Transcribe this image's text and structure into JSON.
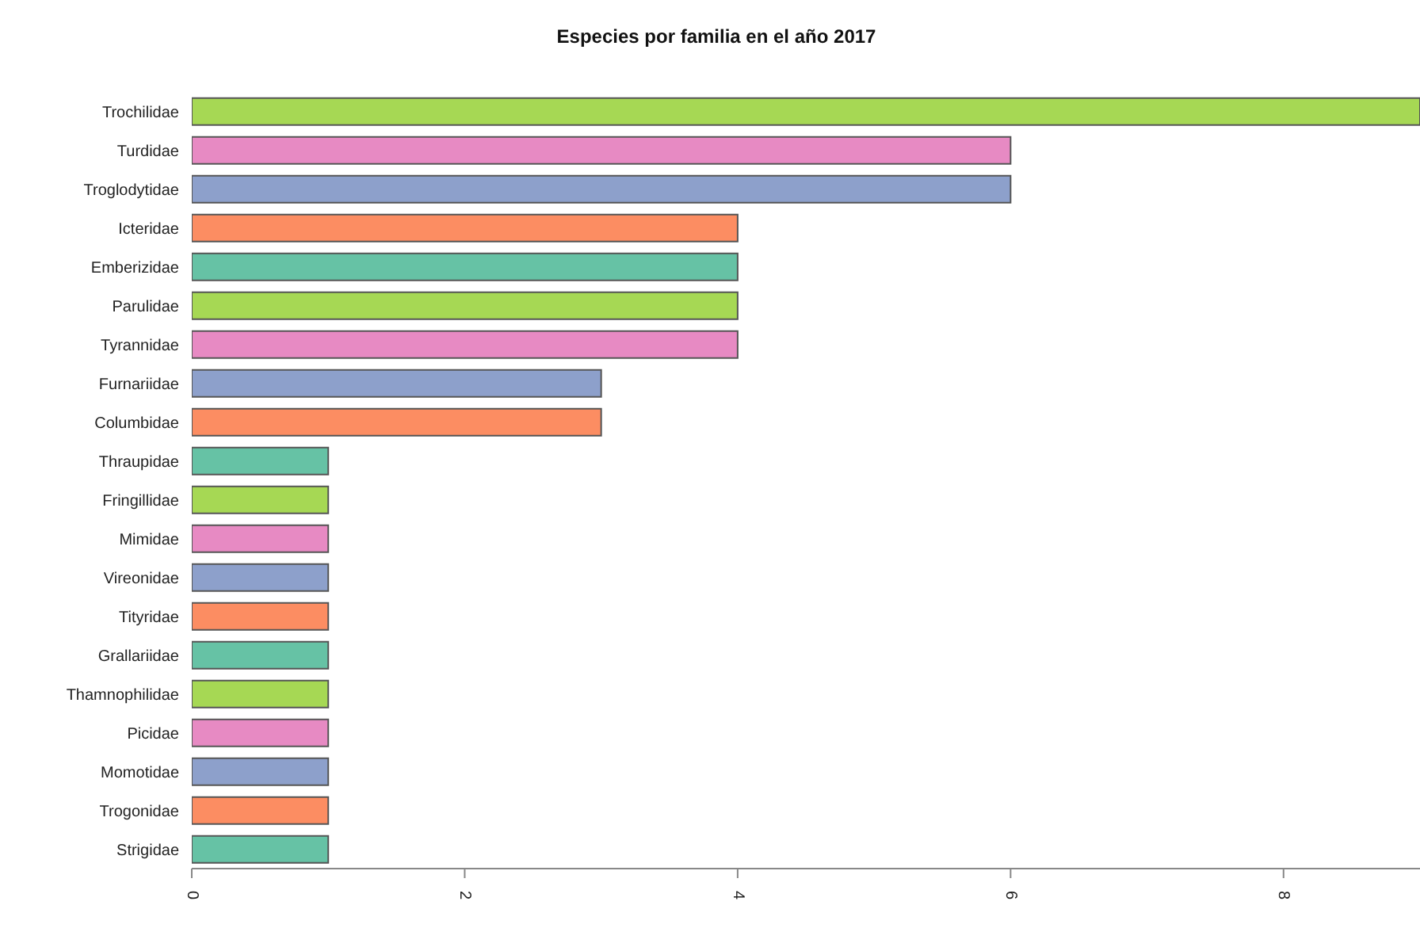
{
  "chart_data": {
    "type": "bar",
    "orientation": "horizontal",
    "title": "Especies por familia en el año 2017",
    "categories": [
      "Trochilidae",
      "Turdidae",
      "Troglodytidae",
      "Icteridae",
      "Emberizidae",
      "Parulidae",
      "Tyrannidae",
      "Furnariidae",
      "Columbidae",
      "Thraupidae",
      "Fringillidae",
      "Mimidae",
      "Vireonidae",
      "Tityridae",
      "Grallariidae",
      "Thamnophilidae",
      "Picidae",
      "Momotidae",
      "Trogonidae",
      "Strigidae"
    ],
    "values": [
      9,
      6,
      6,
      4,
      4,
      4,
      4,
      3,
      3,
      1,
      1,
      1,
      1,
      1,
      1,
      1,
      1,
      1,
      1,
      1
    ],
    "colors": [
      "#a6d854",
      "#e78ac3",
      "#8da0cb",
      "#fc8d62",
      "#66c2a5",
      "#a6d854",
      "#e78ac3",
      "#8da0cb",
      "#fc8d62",
      "#66c2a5",
      "#a6d854",
      "#e78ac3",
      "#8da0cb",
      "#fc8d62",
      "#66c2a5",
      "#a6d854",
      "#e78ac3",
      "#8da0cb",
      "#fc8d62",
      "#66c2a5"
    ],
    "xlim": [
      0,
      9
    ],
    "xticks": [
      0,
      2,
      4,
      6,
      8
    ],
    "grid": false,
    "legend": false
  }
}
